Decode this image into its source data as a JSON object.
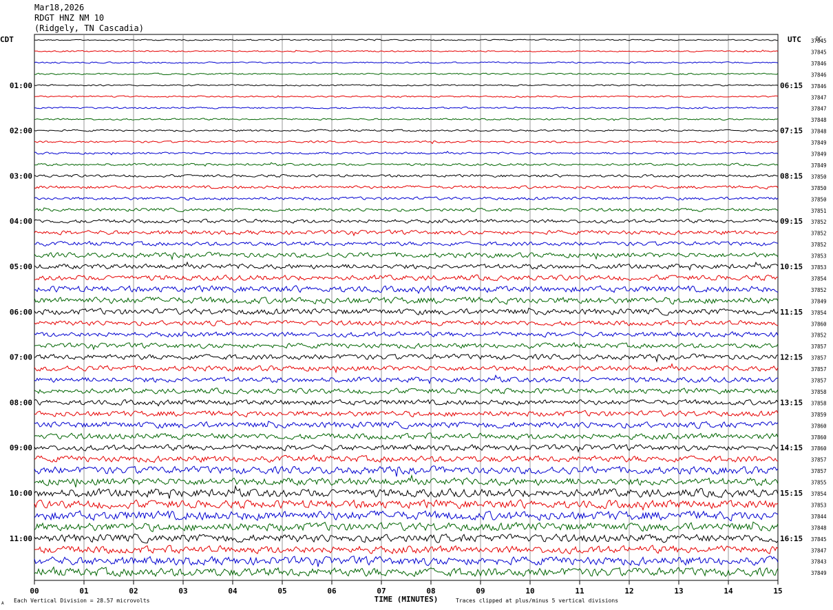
{
  "header": {
    "date": "Mar18,2026",
    "station": "RDGT HNZ NM 10",
    "location": "(Ridgely, TN Cascadia)"
  },
  "left_tz": "CDT",
  "right_tz": "UTC",
  "right_unit": "DC",
  "footer": {
    "scale_note": "Each Vertical Division =   28.57 microvolts",
    "xaxis_title": "TIME (MINUTES)",
    "clip_note": "Traces clipped at plus/minus 5 vertical divisions",
    "corner_mark": "A"
  },
  "colors": {
    "black": "#000000",
    "red": "#e60000",
    "blue": "#0000d0",
    "green": "#006400",
    "grid": "#808080"
  },
  "chart_data": {
    "type": "line",
    "title": "",
    "xlabel": "TIME (MINUTES)",
    "ylabel": "",
    "xlim": [
      0,
      15
    ],
    "x_ticks": [
      "00",
      "01",
      "02",
      "03",
      "04",
      "05",
      "06",
      "07",
      "08",
      "09",
      "10",
      "11",
      "12",
      "13",
      "14",
      "15"
    ],
    "left_time_labels": [
      "01:00",
      "02:00",
      "03:00",
      "04:00",
      "05:00",
      "06:00",
      "07:00",
      "08:00",
      "09:00",
      "10:00",
      "11:00"
    ],
    "right_time_labels": [
      "06:15",
      "07:15",
      "08:15",
      "09:15",
      "10:15",
      "11:15",
      "12:15",
      "13:15",
      "14:15",
      "15:15",
      "16:15"
    ],
    "trace_colors_cycle": [
      "black",
      "red",
      "blue",
      "green"
    ],
    "grid": true,
    "dc_offsets": [
      "37845",
      "37845",
      "37846",
      "37846",
      "37846",
      "37847",
      "37847",
      "37848",
      "37848",
      "37849",
      "37849",
      "37849",
      "37850",
      "37850",
      "37850",
      "37851",
      "37852",
      "37852",
      "37852",
      "37853",
      "37853",
      "37854",
      "37852",
      "37849",
      "37854",
      "37860",
      "37852",
      "37857",
      "37857",
      "37857",
      "37857",
      "37858",
      "37858",
      "37859",
      "37860",
      "37860",
      "37860",
      "37857",
      "37857",
      "37855",
      "37854",
      "37853",
      "37844",
      "37848",
      "37845",
      "37847",
      "37843",
      "37849"
    ],
    "trace_noise_levels": [
      0.8,
      0.8,
      0.9,
      0.9,
      0.9,
      0.9,
      1.0,
      1.0,
      1.1,
      1.2,
      1.3,
      1.4,
      1.6,
      1.8,
      1.8,
      1.9,
      2.2,
      2.5,
      2.5,
      3.0,
      3.0,
      3.2,
      3.8,
      4.0,
      3.6,
      3.0,
      3.0,
      3.0,
      3.2,
      3.2,
      3.2,
      3.2,
      3.2,
      3.4,
      3.8,
      3.6,
      3.4,
      3.8,
      4.5,
      4.5,
      5.0,
      5.0,
      5.5,
      5.0,
      4.8,
      4.5,
      5.0,
      5.2
    ]
  }
}
